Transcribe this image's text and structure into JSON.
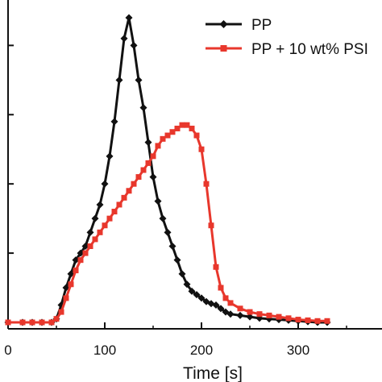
{
  "chart_data": {
    "type": "line",
    "xlabel": "Time [s]",
    "ylabel": "",
    "xlim": [
      0,
      380
    ],
    "ylim": [
      0,
      440
    ],
    "x_ticks": [
      0,
      100,
      200,
      300
    ],
    "x_tick_labels": [
      "0",
      "100",
      "200",
      "300"
    ],
    "y_ticks": [
      100,
      200,
      300,
      400
    ],
    "grid": false,
    "legend_position": "top-right",
    "series": [
      {
        "name": "PP",
        "color": "#111111",
        "marker": "diamond",
        "x": [
          0,
          15,
          25,
          35,
          45,
          50,
          55,
          60,
          65,
          70,
          75,
          80,
          85,
          90,
          95,
          100,
          105,
          110,
          115,
          120,
          125,
          130,
          135,
          140,
          145,
          150,
          155,
          160,
          165,
          170,
          175,
          180,
          185,
          190,
          195,
          200,
          205,
          210,
          215,
          220,
          225,
          230,
          240,
          250,
          260,
          270,
          280,
          290,
          300,
          310,
          320,
          330
        ],
        "y": [
          0,
          0,
          0,
          0,
          0,
          5,
          25,
          50,
          70,
          90,
          100,
          110,
          130,
          150,
          170,
          200,
          240,
          290,
          350,
          410,
          440,
          400,
          350,
          310,
          260,
          210,
          175,
          150,
          130,
          110,
          90,
          70,
          55,
          45,
          40,
          35,
          30,
          27,
          25,
          20,
          15,
          12,
          10,
          8,
          6,
          5,
          4,
          3,
          2,
          1,
          0,
          0
        ]
      },
      {
        "name": "PP + 10 wt% PSI",
        "color": "#e8372c",
        "marker": "square",
        "x": [
          0,
          15,
          25,
          35,
          45,
          50,
          55,
          60,
          65,
          70,
          75,
          80,
          85,
          90,
          95,
          100,
          105,
          110,
          115,
          120,
          125,
          130,
          135,
          140,
          145,
          150,
          155,
          160,
          165,
          170,
          175,
          180,
          185,
          190,
          195,
          200,
          205,
          210,
          215,
          220,
          225,
          230,
          240,
          250,
          260,
          270,
          280,
          290,
          300,
          310,
          320,
          330
        ],
        "y": [
          0,
          0,
          0,
          0,
          0,
          5,
          15,
          35,
          55,
          75,
          90,
          100,
          110,
          120,
          130,
          140,
          150,
          160,
          170,
          180,
          190,
          200,
          210,
          220,
          230,
          240,
          255,
          265,
          270,
          275,
          280,
          285,
          285,
          280,
          270,
          250,
          200,
          140,
          80,
          50,
          35,
          28,
          20,
          15,
          12,
          10,
          8,
          6,
          4,
          3,
          2,
          2
        ]
      }
    ]
  }
}
